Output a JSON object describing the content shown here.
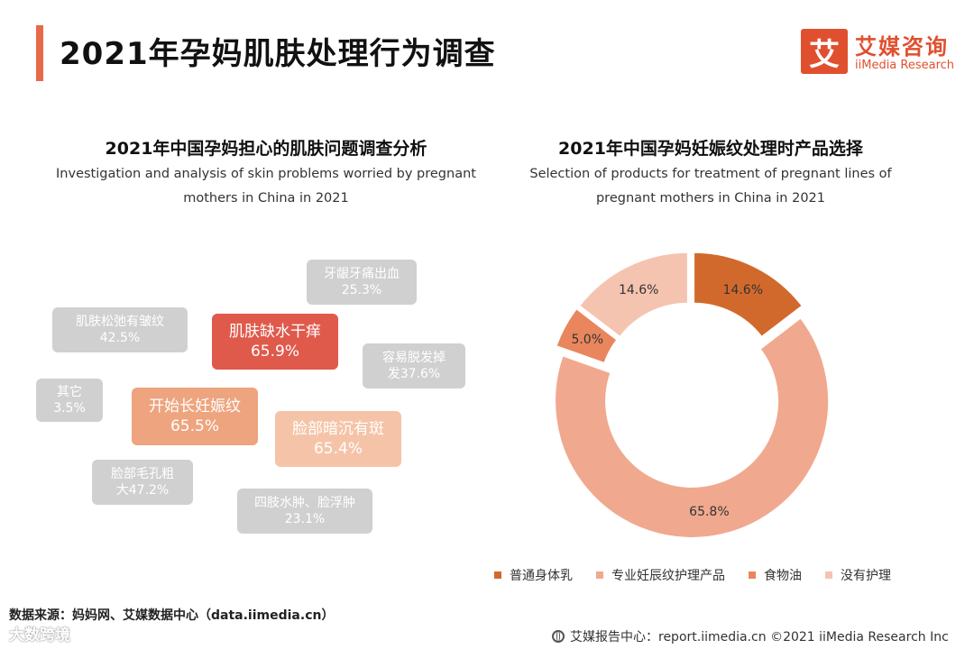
{
  "header": {
    "title": "2021年孕妈肌肤处理行为调查",
    "logo_mark": "艾",
    "logo_cn": "艾媒咨询",
    "logo_en": "iiMedia Research"
  },
  "colors": {
    "accent": "#e8694a",
    "gray_bubble": "#d0d0d0",
    "donut": [
      "#d2692c",
      "#f0a98e",
      "#e9865e",
      "#f5c4b1"
    ]
  },
  "left_chart": {
    "title": "2021年中国孕妈担心的肌肤问题调查分析",
    "subtitle_line1": "Investigation and analysis of skin problems worried by pregnant",
    "subtitle_line2": "mothers in China in 2021",
    "bubbles": [
      {
        "line1": "牙龈牙痛出血",
        "line2": "25.3%",
        "color": "#d0d0d0"
      },
      {
        "line1": "肌肤松弛有皱纹",
        "line2": "42.5%",
        "color": "#d0d0d0"
      },
      {
        "line1": "肌肤缺水干痒",
        "line2": "65.9%",
        "color": "#e05a4c"
      },
      {
        "line1": "容易脱发掉",
        "line2": "发37.6%",
        "color": "#d0d0d0"
      },
      {
        "line1": "其它",
        "line2": "3.5%",
        "color": "#d0d0d0"
      },
      {
        "line1": "开始长妊娠纹",
        "line2": "65.5%",
        "color": "#eea47e"
      },
      {
        "line1": "脸部暗沉有斑",
        "line2": "65.4%",
        "color": "#f5c4a8"
      },
      {
        "line1": "脸部毛孔粗",
        "line2": "大47.2%",
        "color": "#d0d0d0"
      },
      {
        "line1": "四肢水肿、脸浮肿",
        "line2": "23.1%",
        "color": "#d0d0d0"
      }
    ]
  },
  "chart_data": {
    "type": "pie",
    "title": "2021年中国孕妈妊娠纹处理时产品选择",
    "subtitle_line1": "Selection of products for treatment of pregnant lines of",
    "subtitle_line2": "pregnant mothers in China in 2021",
    "categories": [
      "普通身体乳",
      "专业妊辰纹护理产品",
      "食物油",
      "没有护理"
    ],
    "values": [
      14.6,
      65.8,
      5.0,
      14.6
    ],
    "labels": [
      "14.6%",
      "65.8%",
      "5.0%",
      "14.6%"
    ],
    "colors": [
      "#d2692c",
      "#f0a98e",
      "#e9865e",
      "#f5c4b1"
    ],
    "legend_position": "bottom"
  },
  "footer": {
    "source": "数据来源：妈妈网、艾媒数据中心（data.iimedia.cn）",
    "watermark": "大数跨境",
    "report_center": "艾媒报告中心：report.iimedia.cn   ©2021  iiMedia Research  Inc"
  }
}
